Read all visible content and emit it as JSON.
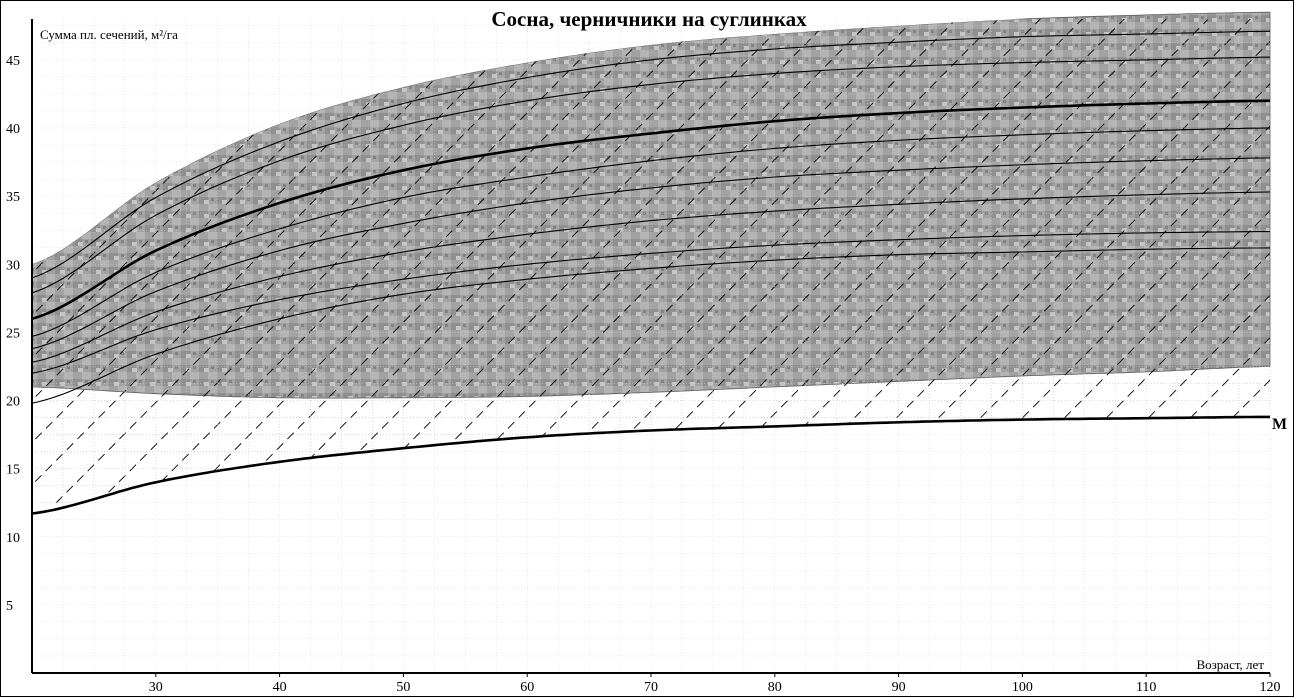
{
  "chart_data": {
    "type": "line",
    "title": "Сосна, черничники на суглинках",
    "xlabel": "Возраст, лет",
    "ylabel": "Сумма пл. сечений, м²/га",
    "xlim": [
      20,
      120
    ],
    "ylim": [
      0,
      48
    ],
    "x_ticks": [
      30,
      40,
      50,
      60,
      70,
      80,
      90,
      100,
      110,
      120
    ],
    "y_ticks": [
      5,
      10,
      15,
      20,
      25,
      30,
      35,
      40,
      45
    ],
    "grid": true,
    "shaded_band": {
      "x": [
        20,
        30,
        40,
        50,
        60,
        70,
        80,
        90,
        100,
        110,
        120
      ],
      "upper": [
        30.0,
        36.0,
        40.3,
        43.0,
        44.8,
        46.1,
        46.9,
        47.5,
        48.0,
        48.3,
        48.5
      ],
      "lower": [
        21.0,
        20.5,
        20.2,
        20.2,
        20.3,
        20.6,
        21.0,
        21.4,
        21.8,
        22.1,
        22.5
      ]
    },
    "x": [
      20,
      30,
      40,
      50,
      60,
      70,
      80,
      90,
      100,
      110,
      120
    ],
    "series": [
      {
        "values": [
          29.0,
          34.9,
          39.0,
          41.8,
          43.7,
          45.0,
          45.8,
          46.3,
          46.7,
          46.9,
          47.1
        ]
      },
      {
        "values": [
          27.9,
          33.6,
          37.6,
          40.2,
          42.0,
          43.2,
          44.0,
          44.5,
          44.8,
          45.0,
          45.2
        ]
      },
      {
        "values": [
          26.0,
          31.0,
          34.5,
          36.9,
          38.5,
          39.6,
          40.5,
          41.1,
          41.5,
          41.8,
          42.0
        ],
        "emphasis": true
      },
      {
        "values": [
          24.7,
          29.4,
          32.6,
          34.9,
          36.4,
          37.6,
          38.5,
          39.1,
          39.5,
          39.8,
          40.0
        ]
      },
      {
        "values": [
          23.8,
          28.0,
          31.0,
          33.0,
          34.5,
          35.6,
          36.4,
          36.9,
          37.3,
          37.6,
          37.8
        ]
      },
      {
        "values": [
          22.8,
          26.5,
          29.1,
          30.9,
          32.2,
          33.2,
          33.9,
          34.4,
          34.8,
          35.1,
          35.3
        ]
      },
      {
        "values": [
          22.0,
          25.2,
          27.4,
          28.9,
          30.0,
          30.8,
          31.4,
          31.8,
          32.1,
          32.3,
          32.4
        ]
      },
      {
        "values": [
          19.8,
          23.4,
          26.0,
          27.8,
          28.9,
          29.7,
          30.3,
          30.7,
          30.9,
          31.1,
          31.2
        ]
      },
      {
        "name": "M",
        "values": [
          11.7,
          14.0,
          15.5,
          16.5,
          17.3,
          17.8,
          18.1,
          18.4,
          18.6,
          18.7,
          18.8
        ],
        "emphasis": true
      }
    ]
  }
}
